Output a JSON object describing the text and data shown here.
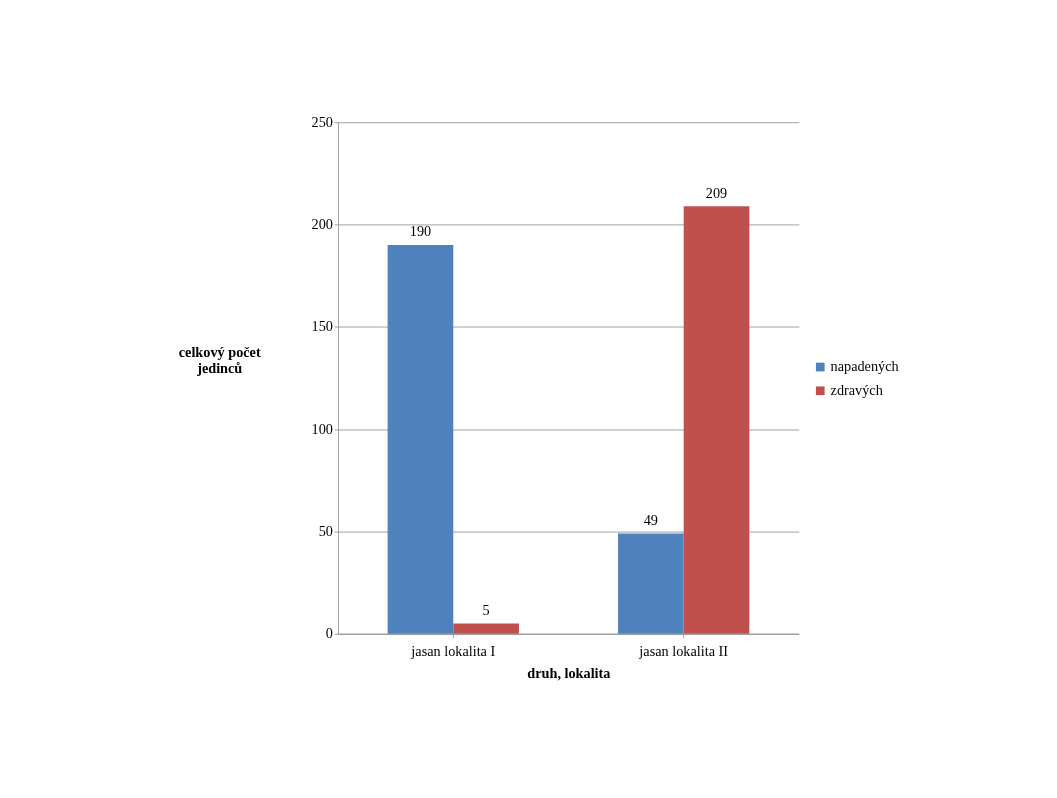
{
  "chart_data": {
    "type": "bar",
    "xlabel": "druh, lokalita",
    "ylabel": "celkový počet jedinců",
    "categories": [
      "jasan lokalita I",
      "jasan lokalita II"
    ],
    "series": [
      {
        "name": "napadených",
        "color": "#4f81bd",
        "values": [
          190,
          49
        ]
      },
      {
        "name": "zdravých",
        "color": "#c0504d",
        "values": [
          5,
          209
        ]
      }
    ],
    "ylim": [
      0,
      250
    ],
    "yticks": [
      0,
      50,
      100,
      150,
      200,
      250
    ],
    "grid": "y",
    "legend": "right",
    "data_labels": true
  }
}
